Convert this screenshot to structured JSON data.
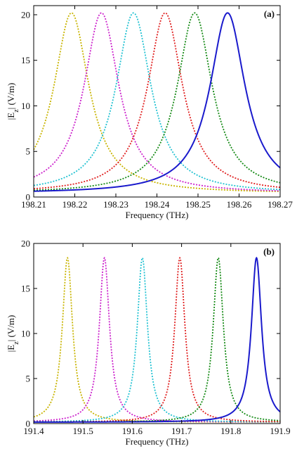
{
  "chart_data": [
    {
      "type": "line",
      "panel_label": "(a)",
      "xlabel": "Frequency (THz)",
      "ylabel_main": "|E",
      "ylabel_sub": "z",
      "ylabel_tail": "| (V/m)",
      "xlim": [
        198.21,
        198.27
      ],
      "ylim": [
        0,
        21
      ],
      "x_ticks": [
        198.21,
        198.22,
        198.23,
        198.24,
        198.25,
        198.26,
        198.27
      ],
      "x_tick_labels": [
        "198.21",
        "198.22",
        "198.23",
        "198.24",
        "198.25",
        "198.26",
        "198.27"
      ],
      "y_ticks": [
        0,
        5,
        10,
        15,
        20
      ],
      "y_tick_labels": [
        "0",
        "5",
        "10",
        "15",
        "20"
      ],
      "grid": false,
      "series": [
        {
          "color": "#c8b400",
          "style": "dotted",
          "center": 198.2192,
          "peak": 20.2,
          "half_width": 0.0052,
          "offset": 0.4
        },
        {
          "color": "#cc22cc",
          "style": "dotted",
          "center": 198.2265,
          "peak": 20.2,
          "half_width": 0.0052,
          "offset": 0.4
        },
        {
          "color": "#22c2d2",
          "style": "dotted",
          "center": 198.2343,
          "peak": 20.2,
          "half_width": 0.0052,
          "offset": 0.4
        },
        {
          "color": "#e02020",
          "style": "dotted",
          "center": 198.242,
          "peak": 20.2,
          "half_width": 0.0052,
          "offset": 0.4
        },
        {
          "color": "#158a15",
          "style": "dotted",
          "center": 198.2492,
          "peak": 20.2,
          "half_width": 0.0052,
          "offset": 0.4
        },
        {
          "color": "#1a1acc",
          "style": "solid",
          "center": 198.2572,
          "peak": 20.2,
          "half_width": 0.0052,
          "offset": 0.4
        }
      ]
    },
    {
      "type": "line",
      "panel_label": "(b)",
      "xlabel": "Frequency (THz)",
      "ylabel_main": "|E",
      "ylabel_sub": "z",
      "ylabel_tail": "| (V/m)",
      "xlim": [
        191.4,
        191.9
      ],
      "ylim": [
        0,
        20
      ],
      "x_ticks": [
        191.4,
        191.5,
        191.6,
        191.7,
        191.8,
        191.9
      ],
      "x_tick_labels": [
        "191.4",
        "191.5",
        "191.6",
        "191.7",
        "191.8",
        "191.9"
      ],
      "y_ticks": [
        0,
        5,
        10,
        15,
        20
      ],
      "y_tick_labels": [
        "0",
        "5",
        "10",
        "15",
        "20"
      ],
      "grid": false,
      "series": [
        {
          "color": "#c8b400",
          "style": "dotted",
          "center": 191.4685,
          "peak": 18.4,
          "half_width": 0.0125,
          "offset": 0.15
        },
        {
          "color": "#cc22cc",
          "style": "dotted",
          "center": 191.5435,
          "peak": 18.4,
          "half_width": 0.0125,
          "offset": 0.15
        },
        {
          "color": "#22c2d2",
          "style": "dotted",
          "center": 191.6205,
          "peak": 18.4,
          "half_width": 0.0125,
          "offset": 0.15
        },
        {
          "color": "#e02020",
          "style": "dotted",
          "center": 191.6965,
          "peak": 18.4,
          "half_width": 0.0125,
          "offset": 0.15
        },
        {
          "color": "#158a15",
          "style": "dotted",
          "center": 191.7745,
          "peak": 18.4,
          "half_width": 0.0125,
          "offset": 0.15
        },
        {
          "color": "#1a1acc",
          "style": "solid",
          "center": 191.852,
          "peak": 18.4,
          "half_width": 0.0125,
          "offset": 0.15
        }
      ]
    }
  ]
}
